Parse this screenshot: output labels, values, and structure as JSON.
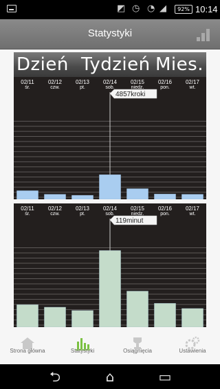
{
  "status_bar": {
    "battery": "92%",
    "time": "10:14"
  },
  "header": {
    "title": "Statystyki"
  },
  "period_tabs": [
    "Dzień",
    "Tydzień",
    "Mies."
  ],
  "chart_data": [
    {
      "type": "bar",
      "metric": "steps",
      "categories": [
        "02/11",
        "02/12",
        "02/13",
        "02/14",
        "02/15",
        "02/16",
        "02/17"
      ],
      "day_labels": [
        "śr.",
        "czw.",
        "pt.",
        "sob.",
        "niedz.",
        "pon.",
        "wt."
      ],
      "values": [
        1700,
        1000,
        800,
        4857,
        2100,
        1050,
        1000
      ],
      "selected_index": 3,
      "tooltip": "4857kroki",
      "bar_color": "#a9cdf0",
      "ylim": [
        0,
        20000
      ],
      "grid": true
    },
    {
      "type": "bar",
      "metric": "minutes",
      "categories": [
        "02/11",
        "02/12",
        "02/13",
        "02/14",
        "02/15",
        "02/16",
        "02/17"
      ],
      "day_labels": [
        "śr.",
        "czw.",
        "pt.",
        "sob.",
        "niedz.",
        "pon.",
        "wt."
      ],
      "values": [
        35,
        31,
        26,
        119,
        56,
        37,
        29
      ],
      "selected_index": 3,
      "tooltip": "119minut",
      "bar_color": "#c4dcca",
      "ylim": [
        0,
        160
      ],
      "grid": true
    }
  ],
  "bottom_nav": [
    {
      "label": "Strona główna",
      "icon": "home-icon"
    },
    {
      "label": "Statystyki",
      "icon": "stats-icon"
    },
    {
      "label": "Osiągnięcia",
      "icon": "trophy-icon"
    },
    {
      "label": "Ustawienia",
      "icon": "gear-icon"
    }
  ],
  "colors": {
    "chart_bg": "#231f1e",
    "active_nav": "#7bc142"
  }
}
